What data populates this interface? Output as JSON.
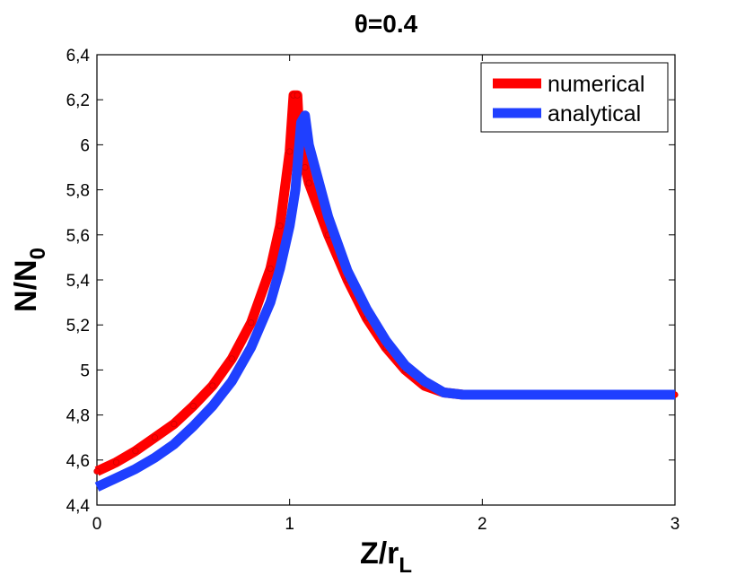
{
  "chart_data": {
    "type": "line",
    "title": "θ=0.4",
    "xlabel": {
      "main": "Z/r",
      "sub": "L"
    },
    "ylabel": {
      "main": "N/N",
      "sub": "0"
    },
    "xlim": [
      0,
      3
    ],
    "ylim": [
      4.4,
      6.4
    ],
    "xticks": [
      0,
      1,
      2,
      3
    ],
    "xtick_labels": [
      "0",
      "1",
      "2",
      "3"
    ],
    "yticks": [
      4.4,
      4.6,
      4.8,
      5.0,
      5.2,
      5.4,
      5.6,
      5.8,
      6.0,
      6.2,
      6.4
    ],
    "ytick_labels": [
      "4,4",
      "4,6",
      "4,8",
      "5",
      "5,2",
      "5,4",
      "5,6",
      "5,8",
      "6",
      "6,2",
      "6,4"
    ],
    "grid": false,
    "legend_position": "top-right",
    "series": [
      {
        "name": "numerical",
        "color": "#ff0000",
        "marker": "dot",
        "x": [
          0,
          0.1,
          0.2,
          0.3,
          0.4,
          0.5,
          0.6,
          0.7,
          0.8,
          0.9,
          0.95,
          1.0,
          1.02,
          1.04,
          1.05,
          1.08,
          1.1,
          1.2,
          1.3,
          1.4,
          1.5,
          1.6,
          1.7,
          1.8,
          1.9,
          2.0,
          2.2,
          2.4,
          2.6,
          2.8,
          3.0
        ],
        "y": [
          4.55,
          4.59,
          4.64,
          4.7,
          4.76,
          4.84,
          4.93,
          5.05,
          5.21,
          5.45,
          5.64,
          5.97,
          6.22,
          6.22,
          6.05,
          5.9,
          5.83,
          5.6,
          5.4,
          5.23,
          5.1,
          5.0,
          4.93,
          4.9,
          4.89,
          4.89,
          4.89,
          4.89,
          4.89,
          4.89,
          4.89
        ]
      },
      {
        "name": "analytical",
        "color": "#1f3fff",
        "x": [
          0,
          0.1,
          0.2,
          0.3,
          0.4,
          0.5,
          0.6,
          0.7,
          0.8,
          0.9,
          0.95,
          1.0,
          1.03,
          1.06,
          1.08,
          1.1,
          1.2,
          1.3,
          1.4,
          1.5,
          1.6,
          1.7,
          1.8,
          1.9,
          2.0,
          2.2,
          2.4,
          2.6,
          2.8,
          3.0
        ],
        "y": [
          4.48,
          4.52,
          4.56,
          4.61,
          4.67,
          4.75,
          4.84,
          4.95,
          5.1,
          5.3,
          5.45,
          5.64,
          5.8,
          6.1,
          6.13,
          6.0,
          5.68,
          5.44,
          5.27,
          5.13,
          5.02,
          4.95,
          4.9,
          4.89,
          4.89,
          4.89,
          4.89,
          4.89,
          4.89,
          4.89
        ]
      }
    ]
  }
}
